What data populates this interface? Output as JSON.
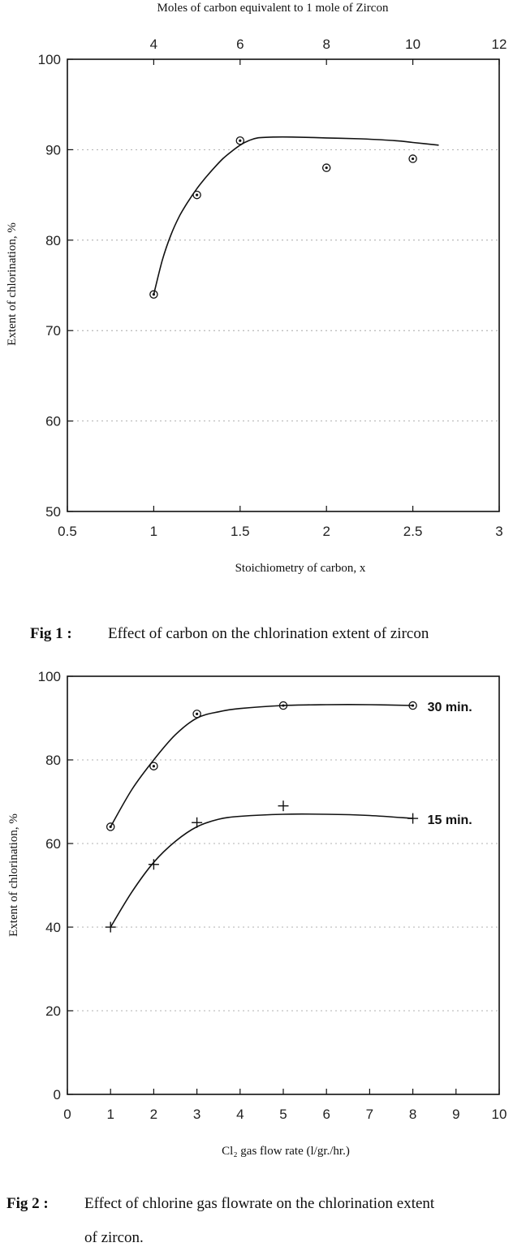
{
  "chart_data": [
    {
      "type": "scatter",
      "title": "",
      "xlabel": "Stoichiometry of carbon, x",
      "ylabel": "Extent of chlorination, %",
      "top_xlabel": "Moles of carbon equivalent to 1 mole of Zircon",
      "xlim": [
        0.5,
        3
      ],
      "ylim": [
        50,
        100
      ],
      "top_xlim": [
        2,
        12
      ],
      "x_ticks": [
        "0.5",
        "1",
        "1.5",
        "2",
        "2.5",
        "3"
      ],
      "y_ticks": [
        "50",
        "60",
        "70",
        "80",
        "90",
        "100"
      ],
      "top_x_ticks": [
        "4",
        "6",
        "8",
        "10",
        "12"
      ],
      "grid": true,
      "series": [
        {
          "marker": "circle-dot",
          "x": [
            1,
            1.25,
            1.5,
            2,
            2.5
          ],
          "y": [
            74,
            85,
            91,
            88,
            89
          ]
        }
      ],
      "fit_curve": {
        "x": [
          1.0,
          1.05,
          1.1,
          1.15,
          1.2,
          1.25,
          1.3,
          1.35,
          1.4,
          1.45,
          1.5,
          1.55,
          1.6,
          1.7,
          1.8,
          2.0,
          2.2,
          2.4,
          2.5,
          2.65
        ],
        "y": [
          74,
          77.8,
          80.6,
          82.7,
          84.3,
          85.7,
          86.9,
          88.0,
          89.0,
          89.8,
          90.5,
          91.0,
          91.3,
          91.4,
          91.4,
          91.3,
          91.2,
          91.0,
          90.8,
          90.5
        ]
      },
      "caption_label": "Fig 1 :",
      "caption_text": "Effect of carbon on the chlorination extent of zircon"
    },
    {
      "type": "line",
      "title": "",
      "xlabel": "Cl₂ gas flow rate (l/gr./hr.)",
      "ylabel": "Extent of chlorination, %",
      "xlim": [
        0,
        10
      ],
      "ylim": [
        0,
        100
      ],
      "x_ticks": [
        "0",
        "1",
        "2",
        "3",
        "4",
        "5",
        "6",
        "7",
        "8",
        "9",
        "10"
      ],
      "y_ticks": [
        "0",
        "20",
        "40",
        "60",
        "80",
        "100"
      ],
      "grid": true,
      "series": [
        {
          "name": "30 min.",
          "marker": "circle-dot",
          "x": [
            1,
            2,
            3,
            5,
            8
          ],
          "y": [
            64,
            78.5,
            91,
            93,
            93
          ],
          "curve_x": [
            1,
            1.5,
            2,
            2.5,
            3,
            3.5,
            4,
            5,
            6,
            7,
            8
          ],
          "curve_y": [
            64,
            73,
            80,
            86,
            90,
            91.5,
            92.3,
            93,
            93.2,
            93.2,
            93
          ]
        },
        {
          "name": "15 min.",
          "marker": "plus",
          "x": [
            1,
            2,
            3,
            5,
            8
          ],
          "y": [
            40,
            55,
            65,
            69,
            66
          ],
          "curve_x": [
            1,
            1.5,
            2,
            2.5,
            3,
            3.5,
            4,
            5,
            6,
            7,
            8
          ],
          "curve_y": [
            40,
            48.5,
            55.5,
            60.5,
            64,
            65.8,
            66.5,
            67,
            67,
            66.7,
            66
          ]
        }
      ],
      "caption_label": "Fig 2 :",
      "caption_text_line1": "Effect of chlorine gas flowrate on the chlorination extent",
      "caption_text_line2": "of zircon."
    }
  ]
}
